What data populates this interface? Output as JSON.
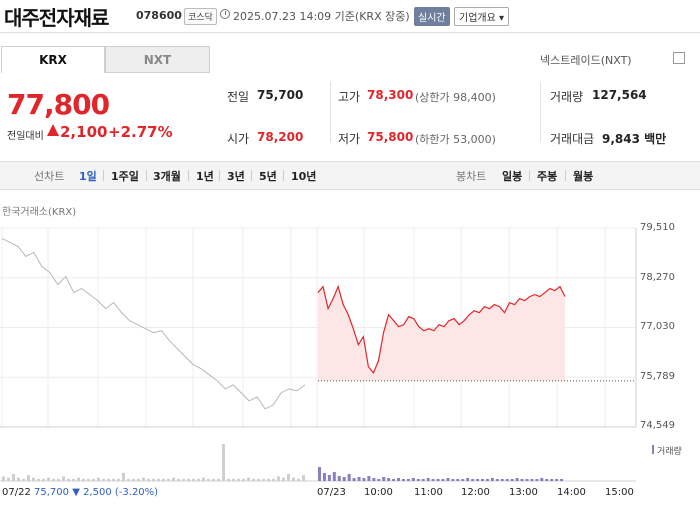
{
  "header": {
    "name": "대주전자재료",
    "code": "078600",
    "market": "코스닥",
    "timestamp": "2025.07.23 14:09 기준(KRX 장중)",
    "realtime": "실시간",
    "corp_button": "기업개요 ▾"
  },
  "tabs": [
    {
      "label": "KRX"
    },
    {
      "label": "NXT"
    }
  ],
  "nxt_link": "넥스트레이드(NXT)",
  "price": {
    "current": "77,800",
    "change_label": "전일대비",
    "change": "2,100",
    "change_pct": "+2.77%"
  },
  "stats": {
    "prev_label": "전일",
    "prev": "75,700",
    "high_label": "고가",
    "high": "78,300",
    "upper_limit": "(상한가 98,400)",
    "volume_label": "거래량",
    "volume": "127,564",
    "open_label": "시가",
    "open": "78,200",
    "low_label": "저가",
    "low": "75,800",
    "lower_limit": "(하한가 53,000)",
    "amount_label": "거래대금",
    "amount": "9,843 백만"
  },
  "period_bar": {
    "line_label": "선차트",
    "periods": [
      "1일",
      "1주일",
      "3개월",
      "1년",
      "3년",
      "5년",
      "10년"
    ],
    "selected": "1일",
    "candle_label": "봉차트",
    "candles": [
      "일봉",
      "주봉",
      "월봉"
    ]
  },
  "chart_data": {
    "type": "area",
    "exchange": "한국거래소(KRX)",
    "y_ticks": [
      79510,
      78270,
      77030,
      75789,
      74549
    ],
    "y_tick_labels": [
      "79,510",
      "78,270",
      "77,030",
      "75,789",
      "74,549"
    ],
    "ylim": [
      74549,
      79510
    ],
    "baseline": 75700,
    "x_ticks": [
      "07/22",
      "07/23",
      "10:00",
      "11:00",
      "12:00",
      "13:00",
      "14:00",
      "15:00"
    ],
    "volume_label": "거래량",
    "prev_day": {
      "date": "07/22",
      "close": "75,700",
      "change": "▼ 2,500",
      "change_pct": "(-3.20%)"
    },
    "colors": {
      "up": "#e0262a",
      "fill": "#fde6e6",
      "prev": "#b8b8b8",
      "volume": "#8a7fbf"
    },
    "prev_series": [
      79250,
      79150,
      79050,
      78800,
      78900,
      78550,
      78400,
      78100,
      78300,
      77900,
      78000,
      77850,
      77700,
      77500,
      77650,
      77400,
      77200,
      77100,
      77000,
      76900,
      76950,
      76700,
      76500,
      76300,
      76100,
      76000,
      75850,
      75700,
      75500,
      75600,
      75400,
      75200,
      75300,
      75000,
      75100,
      75400,
      75500,
      75450,
      75600
    ],
    "today_series": [
      77900,
      78050,
      77500,
      77750,
      78050,
      77600,
      77350,
      77000,
      76600,
      76800,
      76050,
      75900,
      76200,
      76900,
      77350,
      77200,
      77050,
      77100,
      77300,
      77250,
      77050,
      76950,
      77000,
      76950,
      77100,
      77050,
      77200,
      77250,
      77100,
      77200,
      77350,
      77450,
      77400,
      77550,
      77500,
      77600,
      77550,
      77400,
      77650,
      77600,
      77750,
      77700,
      77800,
      77850,
      77800,
      77900,
      78000,
      77950,
      78050,
      77800
    ]
  }
}
